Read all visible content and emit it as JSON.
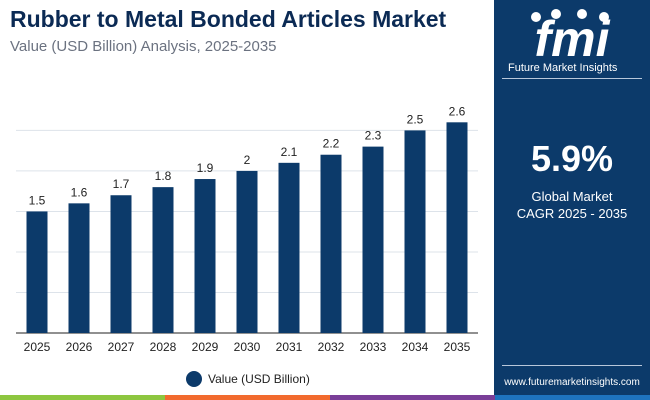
{
  "header": {
    "title": "Rubber to Metal Bonded Articles Market",
    "subtitle": "Value (USD Billion) Analysis, 2025-2035"
  },
  "chart_data": {
    "type": "bar",
    "title": "Rubber to Metal Bonded Articles Market",
    "subtitle": "Value (USD Billion) Analysis, 2025-2035",
    "categories": [
      "2025",
      "2026",
      "2027",
      "2028",
      "2029",
      "2030",
      "2031",
      "2032",
      "2033",
      "2034",
      "2035"
    ],
    "series": [
      {
        "name": "Value (USD Billion)",
        "values": [
          1.5,
          1.6,
          1.7,
          1.8,
          1.9,
          2,
          2.1,
          2.2,
          2.3,
          2.5,
          2.6
        ]
      }
    ],
    "data_labels": [
      "1.5",
      "1.6",
      "1.7",
      "1.8",
      "1.9",
      "2",
      "2.1",
      "2.2",
      "2.3",
      "2.5",
      "2.6"
    ],
    "ylim": [
      0,
      2.9
    ],
    "grid": true,
    "legend": "bottom-center",
    "xlabel": "",
    "ylabel": ""
  },
  "side_panel": {
    "logo_text": "Future Market Insights",
    "cagr_value": "5.9%",
    "cagr_line1": "Global Market",
    "cagr_line2": "CAGR 2025 - 2035",
    "website": "www.futuremarketinsights.com"
  },
  "colors": {
    "bar": "#0c3a6a",
    "title": "#0b2a54",
    "panel": "#0c3a6a",
    "grid": "#dde3ea",
    "footer_green": "#8dc63f",
    "footer_orange": "#f26a2e",
    "footer_purple": "#7a3e98",
    "footer_blue": "#1e73be"
  }
}
